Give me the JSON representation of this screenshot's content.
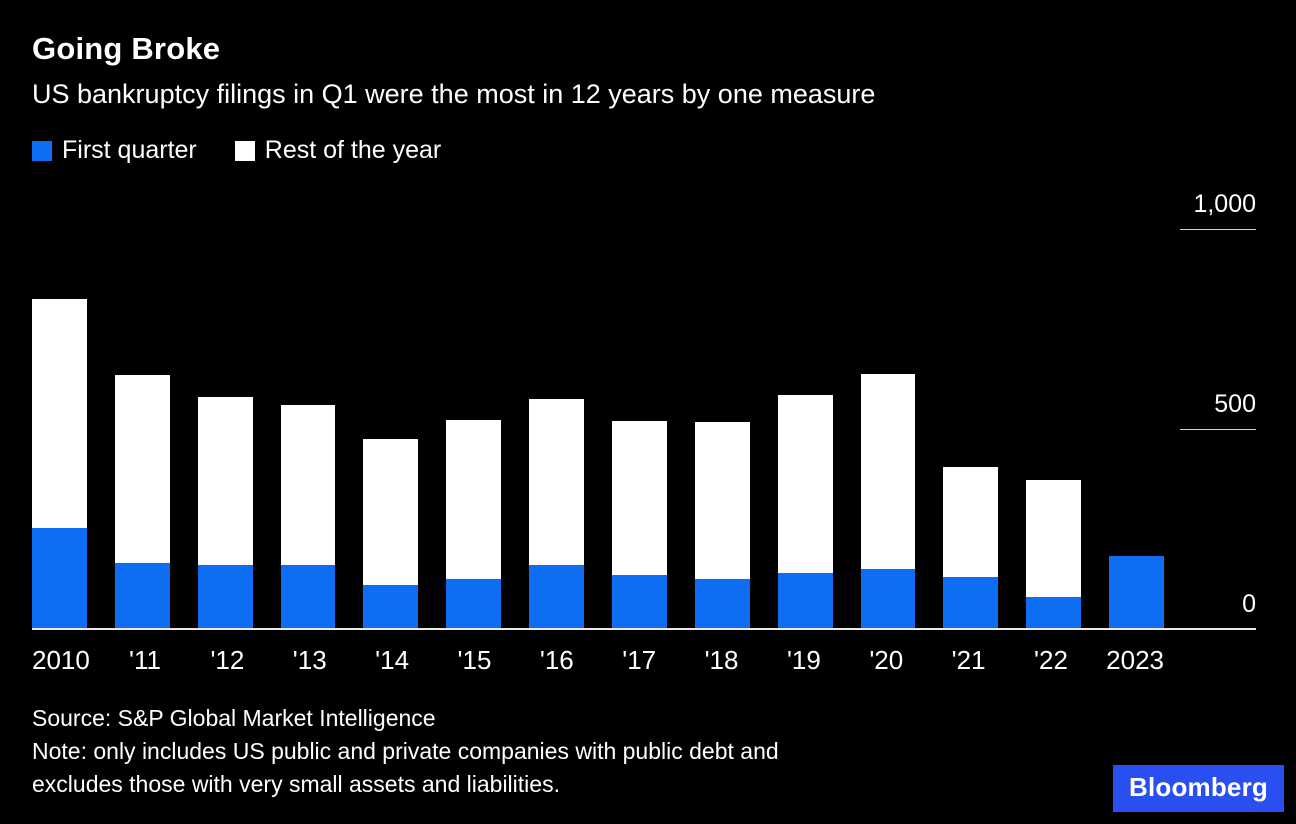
{
  "title": "Going Broke",
  "subtitle": "US bankruptcy filings in Q1 were the most in 12 years by one measure",
  "legend": [
    {
      "label": "First quarter",
      "color": "#0d6ef4"
    },
    {
      "label": "Rest of the year",
      "color": "#ffffff"
    }
  ],
  "chart_data": {
    "type": "bar",
    "stacked": true,
    "title": "Going Broke",
    "subtitle": "US bankruptcy filings in Q1 were the most in 12 years by one measure",
    "categories": [
      "2010",
      "'11",
      "'12",
      "'13",
      "'14",
      "'15",
      "'16",
      "'17",
      "'18",
      "'19",
      "'20",
      "'21",
      "'22",
      "2023"
    ],
    "series": [
      {
        "name": "First quarter",
        "color": "#0d6ef4",
        "values": [
          254,
          165,
          160,
          160,
          110,
          125,
          160,
          135,
          125,
          140,
          151,
          130,
          81,
          183
        ]
      },
      {
        "name": "Rest of the year",
        "color": "#ffffff",
        "values": [
          573,
          470,
          421,
          400,
          365,
          399,
          416,
          385,
          394,
          446,
          488,
          276,
          292,
          0
        ]
      }
    ],
    "xlabel": "",
    "ylabel": "",
    "ylim": [
      0,
      1000
    ],
    "yticks": [
      0,
      500,
      1000
    ],
    "ytick_labels": [
      "0",
      "500",
      "1,000"
    ],
    "legend_position": "top-left",
    "grid": "right-side-ticks-only",
    "background": "#000000"
  },
  "footer": {
    "source": "Source: S&P Global Market Intelligence",
    "note_lines": [
      "Note: only includes US public and private companies with public debt and",
      "excludes those with very small assets and liabilities."
    ]
  },
  "logo": {
    "text": "Bloomberg",
    "background": "#2a4ff0",
    "text_color": "#ffffff"
  }
}
